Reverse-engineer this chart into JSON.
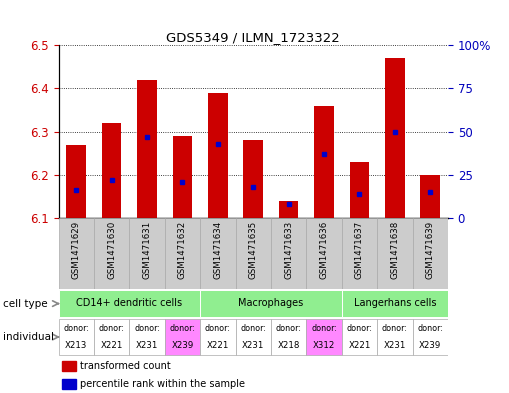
{
  "title": "GDS5349 / ILMN_1723322",
  "samples": [
    "GSM1471629",
    "GSM1471630",
    "GSM1471631",
    "GSM1471632",
    "GSM1471634",
    "GSM1471635",
    "GSM1471633",
    "GSM1471636",
    "GSM1471637",
    "GSM1471638",
    "GSM1471639"
  ],
  "transformed_count": [
    6.27,
    6.32,
    6.42,
    6.29,
    6.39,
    6.28,
    6.14,
    6.36,
    6.23,
    6.47,
    6.2
  ],
  "percentile_rank": [
    16,
    22,
    47,
    21,
    43,
    18,
    8,
    37,
    14,
    50,
    15
  ],
  "ylim": [
    6.1,
    6.5
  ],
  "y2lim": [
    0,
    100
  ],
  "yticks": [
    6.1,
    6.2,
    6.3,
    6.4,
    6.5
  ],
  "y2ticks": [
    0,
    25,
    50,
    75,
    100
  ],
  "y2tick_labels": [
    "0",
    "25",
    "50",
    "75",
    "100%"
  ],
  "cell_types": [
    {
      "label": "CD14+ dendritic cells",
      "start": 0,
      "end": 4
    },
    {
      "label": "Macrophages",
      "start": 4,
      "end": 8
    },
    {
      "label": "Langerhans cells",
      "start": 8,
      "end": 11
    }
  ],
  "individuals": [
    {
      "donor": "X213",
      "pink": false
    },
    {
      "donor": "X221",
      "pink": false
    },
    {
      "donor": "X231",
      "pink": false
    },
    {
      "donor": "X239",
      "pink": true
    },
    {
      "donor": "X221",
      "pink": false
    },
    {
      "donor": "X231",
      "pink": false
    },
    {
      "donor": "X218",
      "pink": false
    },
    {
      "donor": "X312",
      "pink": true
    },
    {
      "donor": "X221",
      "pink": false
    },
    {
      "donor": "X231",
      "pink": false
    },
    {
      "donor": "X239",
      "pink": false
    }
  ],
  "bar_color": "#cc0000",
  "dot_color": "#0000cc",
  "bar_width": 0.55,
  "ybase": 6.1,
  "grid_color": "#000000",
  "tick_color_left": "#cc0000",
  "tick_color_right": "#0000bb",
  "cell_type_bg": "#90ee90",
  "indiv_pink": "#ff88ff",
  "indiv_white": "#ffffff",
  "sample_bg_color": "#cccccc",
  "left_label_color": "#888888"
}
